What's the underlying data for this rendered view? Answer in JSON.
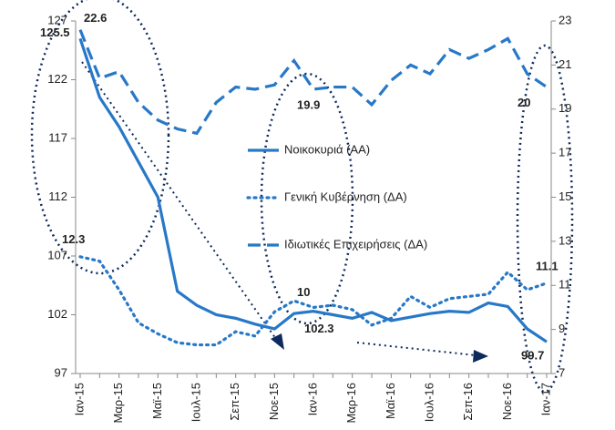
{
  "chart_data": {
    "type": "line",
    "categories": [
      "Ιαν-15",
      null,
      "Μαρ-15",
      null,
      "Μαϊ-15",
      null,
      "Ιουλ-15",
      null,
      "Σεπ-15",
      null,
      "Νοε-15",
      null,
      "Ιαν-16",
      null,
      "Μαρ-16",
      null,
      "Μαϊ-16",
      null,
      "Ιουλ-16",
      null,
      "Σεπ-16",
      null,
      "Νοε-16",
      null,
      "Ιαν-17"
    ],
    "series": [
      {
        "name": "Νοικοκυριά (ΑΑ)",
        "color": "#2878c8",
        "style": "solid",
        "values": [
          125.5,
          120.5,
          118,
          115,
          112,
          104,
          102.8,
          102,
          101.7,
          101.2,
          100.8,
          102.1,
          102.3,
          102,
          101.7,
          102.2,
          101.5,
          101.8,
          102.1,
          102.3,
          102.2,
          103,
          102.7,
          100.8,
          99.7
        ]
      },
      {
        "name": "Γενική Κυβέρνηση (ΔΑ)",
        "color": "#2878c8",
        "style": "dotted",
        "axis": "y2",
        "values": [
          12.3,
          12.1,
          10.8,
          9.3,
          8.8,
          8.4,
          8.3,
          8.3,
          8.9,
          8.7,
          9.8,
          10.3,
          10.0,
          10.1,
          9.9,
          9.2,
          9.5,
          10.5,
          10.0,
          10.4,
          10.5,
          10.6,
          11.6,
          10.8,
          11.1
        ]
      },
      {
        "name": "Ιδιωτικές Επιχειρήσεις (ΔΑ)",
        "color": "#2878c8",
        "style": "dashed",
        "axis": "y2",
        "values": [
          22.6,
          20.4,
          20.7,
          19.3,
          18.5,
          18.1,
          17.9,
          19.3,
          20.0,
          19.9,
          20.1,
          21.2,
          19.9,
          20.0,
          20.0,
          19.2,
          20.3,
          21.0,
          20.6,
          21.7,
          21.3,
          21.7,
          22.2,
          20.6,
          20.0
        ]
      }
    ],
    "ylim": [
      97,
      127
    ],
    "yticks": [
      97,
      102,
      107,
      112,
      117,
      122,
      127
    ],
    "y2lim": [
      7,
      23
    ],
    "y2ticks": [
      7,
      9,
      11,
      13,
      15,
      17,
      19,
      21,
      23
    ]
  }
}
